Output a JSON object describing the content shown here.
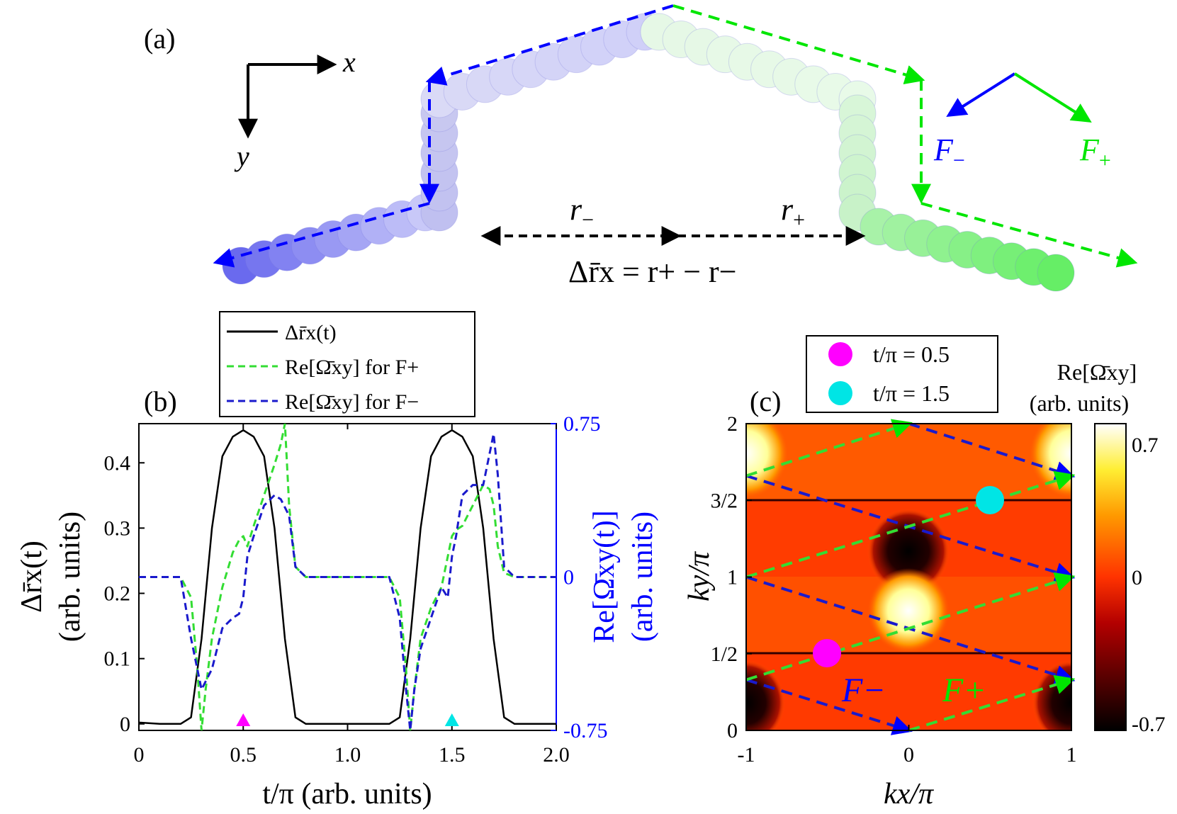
{
  "panel_labels": {
    "a": "(a)",
    "b": "(b)",
    "c": "(c)"
  },
  "panel_a": {
    "axis_x": "x",
    "axis_y": "y",
    "force_minus": "F",
    "force_minus_sub": "−",
    "force_plus": "F",
    "force_plus_sub": "+",
    "r_minus": "r",
    "r_minus_sub": "−",
    "r_plus": "r",
    "r_plus_sub": "+",
    "equation": "Δr̄x = r+ − r−",
    "colors": {
      "blue": "#0000ff",
      "green": "#00e600",
      "blue_dot": "#6a6aee",
      "green_dot": "#66ee66"
    }
  },
  "panel_b": {
    "legend": [
      {
        "label": "Δr̄x(t)",
        "style": "solid",
        "color": "#000000"
      },
      {
        "label": "Re[Ω̄xy] for F+",
        "style": "dashed",
        "color": "#33dd33"
      },
      {
        "label": "Re[Ω̄xy] for F−",
        "style": "dashed",
        "color": "#1a1acc"
      }
    ],
    "xlabel": "t/π (arb. units)",
    "ylabel_left_1": "Δr̄x(t)",
    "ylabel_left_2": "(arb. units)",
    "ylabel_right_1": "Re[Ω̄xy(t)]",
    "ylabel_right_2": "(arb. units)",
    "xticks": [
      "0",
      "0.5",
      "1.0",
      "1.5",
      "2.0"
    ],
    "yticks_left": [
      "0",
      "0.1",
      "0.2",
      "0.3",
      "0.4"
    ],
    "yticks_right": [
      "0.75",
      "0",
      "-0.75"
    ],
    "marker_colors": [
      "#ff00ff",
      "#00e5e5"
    ]
  },
  "panel_c": {
    "legend": [
      {
        "label": "t/π = 0.5",
        "color": "#ff00ff"
      },
      {
        "label": "t/π = 1.5",
        "color": "#00e5e5"
      }
    ],
    "xlabel": "kx/π",
    "ylabel": "ky/π",
    "xticks": [
      "-1",
      "0",
      "1"
    ],
    "yticks": [
      "0",
      "1/2",
      "1",
      "3/2",
      "2"
    ],
    "colorbar_title_1": "Re[Ω̄xy]",
    "colorbar_title_2": "(arb. units)",
    "colorbar_ticks": [
      "0.7",
      "0",
      "-0.7"
    ],
    "label_fminus": "F−",
    "label_fplus": "F+"
  },
  "chart_data": {
    "type": "line",
    "title": "",
    "xlabel": "t/π (arb. units)",
    "ylabel": "Δr̄x(t) (arb. units)",
    "y2label": "Re[Ω̄xy(t)] (arb. units)",
    "xlim": [
      0,
      2.0
    ],
    "ylim": [
      -0.01,
      0.46
    ],
    "y2lim": [
      -0.75,
      0.75
    ],
    "series": [
      {
        "name": "Δr̄x(t)",
        "axis": "left",
        "x": [
          0,
          0.1,
          0.2,
          0.25,
          0.3,
          0.35,
          0.4,
          0.45,
          0.5,
          0.55,
          0.6,
          0.65,
          0.7,
          0.75,
          0.8,
          0.9,
          1.0,
          1.1,
          1.2,
          1.25,
          1.3,
          1.35,
          1.4,
          1.45,
          1.5,
          1.55,
          1.6,
          1.65,
          1.7,
          1.75,
          1.8,
          1.9,
          2.0
        ],
        "values": [
          0.002,
          0.0,
          0.0,
          0.01,
          0.13,
          0.3,
          0.41,
          0.44,
          0.45,
          0.44,
          0.41,
          0.3,
          0.13,
          0.01,
          0.0,
          0.0,
          0.0,
          0.0,
          0.0,
          0.01,
          0.13,
          0.3,
          0.41,
          0.44,
          0.45,
          0.44,
          0.41,
          0.3,
          0.13,
          0.01,
          0.0,
          0.0,
          0.0
        ]
      },
      {
        "name": "Re[Ω̄xy] for F+",
        "axis": "right",
        "x": [
          0,
          0.2,
          0.25,
          0.28,
          0.3,
          0.32,
          0.35,
          0.4,
          0.45,
          0.48,
          0.5,
          0.52,
          0.55,
          0.6,
          0.65,
          0.68,
          0.7,
          0.72,
          0.75,
          0.8,
          0.9,
          1.0,
          1.1,
          1.2,
          1.25,
          1.28,
          1.3,
          1.32,
          1.35,
          1.4,
          1.45,
          1.48,
          1.5,
          1.52,
          1.55,
          1.6,
          1.65,
          1.68,
          1.7,
          1.72,
          1.75,
          1.8,
          1.9,
          2.0
        ],
        "values": [
          0.0,
          0.0,
          -0.1,
          -0.45,
          -0.75,
          -0.55,
          -0.3,
          -0.05,
          0.12,
          0.18,
          0.2,
          0.15,
          0.25,
          0.4,
          0.55,
          0.65,
          0.75,
          0.35,
          0.05,
          0.0,
          0.0,
          0.0,
          0.0,
          0.0,
          -0.1,
          -0.45,
          -0.75,
          -0.55,
          -0.3,
          -0.15,
          -0.05,
          0.1,
          0.2,
          0.23,
          0.25,
          0.35,
          0.45,
          0.43,
          0.35,
          0.15,
          0.02,
          0.0,
          0.0,
          0.0
        ]
      },
      {
        "name": "Re[Ω̄xy] for F−",
        "axis": "right",
        "x": [
          0,
          0.2,
          0.25,
          0.3,
          0.35,
          0.4,
          0.45,
          0.48,
          0.5,
          0.52,
          0.55,
          0.6,
          0.65,
          0.68,
          0.72,
          0.75,
          0.8,
          0.9,
          1.0,
          1.1,
          1.2,
          1.25,
          1.28,
          1.3,
          1.32,
          1.35,
          1.4,
          1.45,
          1.48,
          1.5,
          1.52,
          1.55,
          1.6,
          1.65,
          1.7,
          1.72,
          1.75,
          1.8,
          1.9,
          2.0
        ],
        "values": [
          0.0,
          0.0,
          -0.3,
          -0.55,
          -0.45,
          -0.25,
          -0.2,
          -0.18,
          -0.1,
          0.1,
          0.2,
          0.35,
          0.4,
          0.38,
          0.3,
          0.05,
          0.0,
          0.0,
          0.0,
          0.0,
          0.0,
          -0.2,
          -0.55,
          -0.75,
          -0.55,
          -0.35,
          -0.2,
          -0.05,
          -0.1,
          0.1,
          0.2,
          0.4,
          0.45,
          0.45,
          0.7,
          0.5,
          0.05,
          0.0,
          0.0,
          0.0
        ]
      }
    ],
    "markers": [
      {
        "x": 0.5,
        "label": "t/π = 0.5"
      },
      {
        "x": 1.5,
        "label": "t/π = 1.5"
      }
    ]
  }
}
